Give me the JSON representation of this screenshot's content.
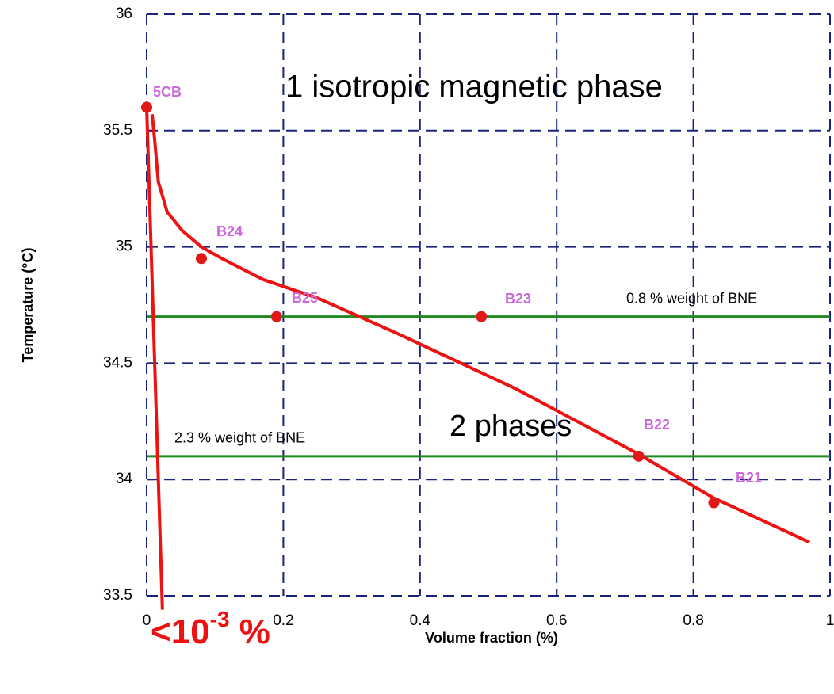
{
  "chart_data": {
    "type": "scatter",
    "x_label": "Volume fraction (%)",
    "y_label": "Temperature (°C)",
    "xlim": [
      0,
      1
    ],
    "ylim": [
      33.5,
      36
    ],
    "xticks": [
      0,
      0.2,
      0.4,
      0.6,
      0.8,
      1
    ],
    "yticks": [
      33.5,
      34,
      34.5,
      35,
      35.5,
      36
    ],
    "grid": true,
    "grid_color": "#1a237e",
    "points": {
      "color": "#e01818",
      "label_color": "#cc66dd",
      "labels": [
        "5CB",
        "B24",
        "B25",
        "B23",
        "B22",
        "B21"
      ],
      "x": [
        0,
        0.08,
        0.19,
        0.49,
        0.72,
        0.83
      ],
      "values": [
        35.6,
        34.95,
        34.7,
        34.7,
        34.1,
        33.9
      ]
    },
    "fit_curve": {
      "color": "#ee1111",
      "x": [
        0.008,
        0.012,
        0.017,
        0.03,
        0.052,
        0.08,
        0.11,
        0.17,
        0.25,
        0.365,
        0.54,
        0.713,
        0.83,
        0.97
      ],
      "values": [
        35.57,
        35.45,
        35.28,
        35.15,
        35.07,
        35.0,
        34.95,
        34.86,
        34.78,
        34.63,
        34.39,
        34.12,
        33.92,
        33.73
      ]
    },
    "limit_line": {
      "color": "#ee1111",
      "x": [
        0,
        0.023
      ],
      "values": [
        35.6,
        33.44
      ]
    },
    "hlines": [
      {
        "value": 34.7,
        "label": "0.8 % weight of BNE",
        "color": "#1f8a1f"
      },
      {
        "value": 34.1,
        "label": "2.3 % weight of BNE",
        "color": "#1f8a1f"
      }
    ],
    "annotations": [
      "1 isotropic magnetic phase",
      "2 phases"
    ],
    "limit_annotation": {
      "base": "<10",
      "superscript": "-3",
      "suffix": " %"
    }
  }
}
